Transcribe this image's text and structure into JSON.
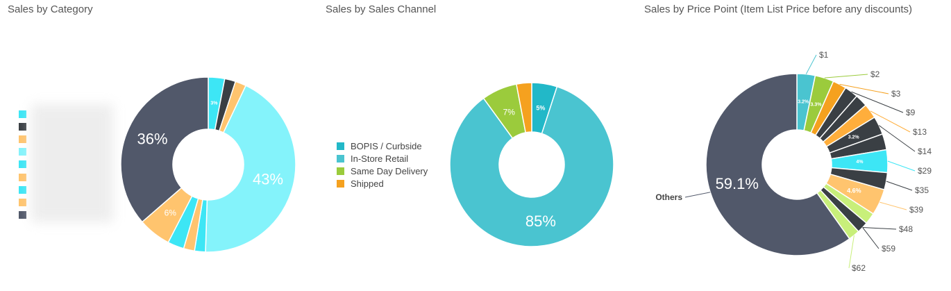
{
  "panels": [
    {
      "title": "Sales by Category"
    },
    {
      "title": "Sales by Sales Channel"
    },
    {
      "title": "Sales by Price Point (Item List Price before any discounts)"
    }
  ],
  "chart_data": [
    {
      "type": "pie",
      "title": "Sales by Category",
      "donut": true,
      "legend_position": "left",
      "slices": [
        {
          "value": 3,
          "label": "3%",
          "color": "#3de6f5"
        },
        {
          "value": 2,
          "label": "",
          "color": "#3a3f44"
        },
        {
          "value": 2,
          "label": "",
          "color": "#ffc46e"
        },
        {
          "value": 43,
          "label": "43%",
          "color": "#84f3fb"
        },
        {
          "value": 2,
          "label": "",
          "color": "#3de6f5"
        },
        {
          "value": 2,
          "label": "",
          "color": "#ffc46e"
        },
        {
          "value": 3,
          "label": "",
          "color": "#3de6f5"
        },
        {
          "value": 6,
          "label": "6%",
          "color": "#ffc46e"
        },
        {
          "value": 36,
          "label": "36%",
          "color": "#51586a"
        }
      ],
      "legend_colors": [
        "#3de6f5",
        "#3a3f44",
        "#ffc46e",
        "#84f3fb",
        "#3de6f5",
        "#ffc46e",
        "#3de6f5",
        "#ffc46e",
        "#51586a"
      ]
    },
    {
      "type": "pie",
      "title": "Sales by Sales Channel",
      "donut": true,
      "legend_position": "left",
      "slices": [
        {
          "name": "BOPIS / Curbside",
          "value": 5,
          "label": "5%",
          "color": "#22b8c8"
        },
        {
          "name": "In-Store Retail",
          "value": 85,
          "label": "85%",
          "color": "#4ac4d0"
        },
        {
          "name": "Same Day Delivery",
          "value": 7,
          "label": "7%",
          "color": "#9bcb3c"
        },
        {
          "name": "Shipped",
          "value": 3,
          "label": "",
          "color": "#f5a11f"
        }
      ]
    },
    {
      "type": "pie",
      "title": "Sales by Price Point (Item List Price before any discounts)",
      "donut": true,
      "slices": [
        {
          "name": "$1",
          "value": 3.2,
          "label": "3.2%",
          "color": "#4ac4d0"
        },
        {
          "name": "$2",
          "value": 3.3,
          "label": "3.3%",
          "color": "#9bcb3c"
        },
        {
          "name": "$3",
          "value": 2.4,
          "label": "",
          "color": "#f5a11f"
        },
        {
          "name": "$9",
          "value": 2.4,
          "label": "",
          "color": "#3a3f44"
        },
        {
          "name": "",
          "value": 2.2,
          "label": "",
          "color": "#3a3f44"
        },
        {
          "name": "$13",
          "value": 2.6,
          "label": "",
          "color": "#ffae3c"
        },
        {
          "name": "$14",
          "value": 3.2,
          "label": "3.2%",
          "color": "#3a3f44"
        },
        {
          "name": "",
          "value": 2.8,
          "label": "",
          "color": "#3a3f44"
        },
        {
          "name": "$29",
          "value": 4.0,
          "label": "4%",
          "color": "#3de6f5"
        },
        {
          "name": "$35",
          "value": 3.0,
          "label": "",
          "color": "#3a3f44"
        },
        {
          "name": "$39",
          "value": 4.6,
          "label": "4.6%",
          "color": "#ffc46e"
        },
        {
          "name": "",
          "value": 2.0,
          "label": "",
          "color": "#c8ef7a"
        },
        {
          "name": "$48",
          "value": 2.0,
          "label": "",
          "color": "#3a3f44"
        },
        {
          "name": "$59",
          "value": 2.0,
          "label": "",
          "color": "#c8ef7a"
        },
        {
          "name": "Others",
          "value": 59.1,
          "label": "59.1%",
          "color": "#51586a"
        }
      ],
      "outer_labels": [
        "$1",
        "$2",
        "$3",
        "$9",
        "$13",
        "$14",
        "$29",
        "$35",
        "$39",
        "$48",
        "$59",
        "$62",
        "Others"
      ]
    }
  ]
}
